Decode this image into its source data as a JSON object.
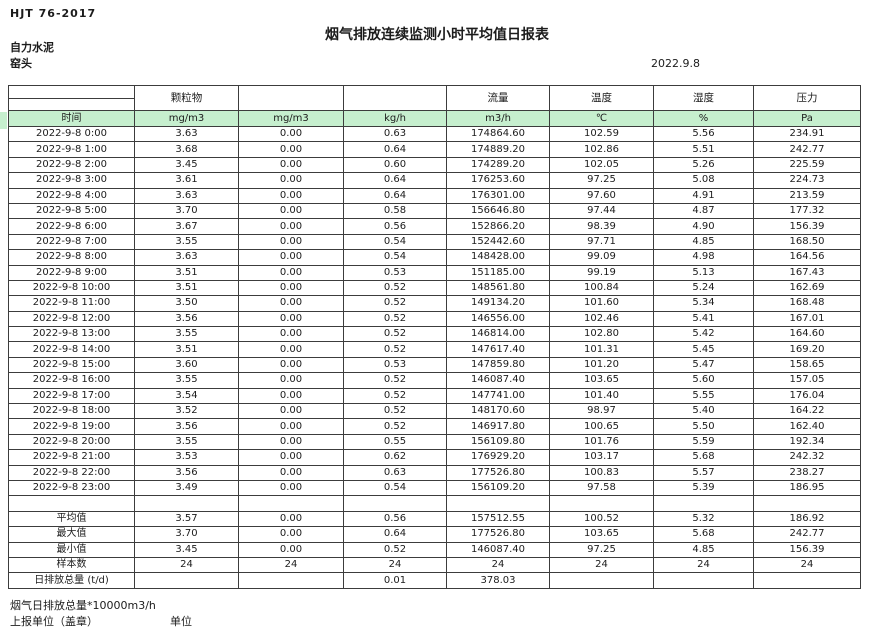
{
  "doc": {
    "standard": "HJT  76-2017",
    "title": "烟气排放连续监测小时平均值日报表",
    "company": "自力水泥",
    "location": "窑头",
    "date": "2022.9.8"
  },
  "colors": {
    "unit_row_bg": "#c6efce",
    "border": "#3c3c3c"
  },
  "table": {
    "group_headers": [
      "",
      "颗粒物",
      "",
      "",
      "流量",
      "温度",
      "湿度",
      "压力"
    ],
    "unit_row": [
      "时间",
      "mg/m3",
      "mg/m3",
      "kg/h",
      "m3/h",
      "℃",
      "%",
      "Pa"
    ],
    "rows": [
      [
        "2022-9-8 0:00",
        "3.63",
        "0.00",
        "0.63",
        "174864.60",
        "102.59",
        "5.56",
        "234.91"
      ],
      [
        "2022-9-8 1:00",
        "3.68",
        "0.00",
        "0.64",
        "174889.20",
        "102.86",
        "5.51",
        "242.77"
      ],
      [
        "2022-9-8 2:00",
        "3.45",
        "0.00",
        "0.60",
        "174289.20",
        "102.05",
        "5.26",
        "225.59"
      ],
      [
        "2022-9-8 3:00",
        "3.61",
        "0.00",
        "0.64",
        "176253.60",
        "97.25",
        "5.08",
        "224.73"
      ],
      [
        "2022-9-8 4:00",
        "3.63",
        "0.00",
        "0.64",
        "176301.00",
        "97.60",
        "4.91",
        "213.59"
      ],
      [
        "2022-9-8 5:00",
        "3.70",
        "0.00",
        "0.58",
        "156646.80",
        "97.44",
        "4.87",
        "177.32"
      ],
      [
        "2022-9-8 6:00",
        "3.67",
        "0.00",
        "0.56",
        "152866.20",
        "98.39",
        "4.90",
        "156.39"
      ],
      [
        "2022-9-8 7:00",
        "3.55",
        "0.00",
        "0.54",
        "152442.60",
        "97.71",
        "4.85",
        "168.50"
      ],
      [
        "2022-9-8 8:00",
        "3.63",
        "0.00",
        "0.54",
        "148428.00",
        "99.09",
        "4.98",
        "164.56"
      ],
      [
        "2022-9-8 9:00",
        "3.51",
        "0.00",
        "0.53",
        "151185.00",
        "99.19",
        "5.13",
        "167.43"
      ],
      [
        "2022-9-8 10:00",
        "3.51",
        "0.00",
        "0.52",
        "148561.80",
        "100.84",
        "5.24",
        "162.69"
      ],
      [
        "2022-9-8 11:00",
        "3.50",
        "0.00",
        "0.52",
        "149134.20",
        "101.60",
        "5.34",
        "168.48"
      ],
      [
        "2022-9-8 12:00",
        "3.56",
        "0.00",
        "0.52",
        "146556.00",
        "102.46",
        "5.41",
        "167.01"
      ],
      [
        "2022-9-8 13:00",
        "3.55",
        "0.00",
        "0.52",
        "146814.00",
        "102.80",
        "5.42",
        "164.60"
      ],
      [
        "2022-9-8 14:00",
        "3.51",
        "0.00",
        "0.52",
        "147617.40",
        "101.31",
        "5.45",
        "169.20"
      ],
      [
        "2022-9-8 15:00",
        "3.60",
        "0.00",
        "0.53",
        "147859.80",
        "101.20",
        "5.47",
        "158.65"
      ],
      [
        "2022-9-8 16:00",
        "3.55",
        "0.00",
        "0.52",
        "146087.40",
        "103.65",
        "5.60",
        "157.05"
      ],
      [
        "2022-9-8 17:00",
        "3.54",
        "0.00",
        "0.52",
        "147741.00",
        "101.40",
        "5.55",
        "176.04"
      ],
      [
        "2022-9-8 18:00",
        "3.52",
        "0.00",
        "0.52",
        "148170.60",
        "98.97",
        "5.40",
        "164.22"
      ],
      [
        "2022-9-8 19:00",
        "3.56",
        "0.00",
        "0.52",
        "146917.80",
        "100.65",
        "5.50",
        "162.40"
      ],
      [
        "2022-9-8 20:00",
        "3.55",
        "0.00",
        "0.55",
        "156109.80",
        "101.76",
        "5.59",
        "192.34"
      ],
      [
        "2022-9-8 21:00",
        "3.53",
        "0.00",
        "0.62",
        "176929.20",
        "103.17",
        "5.68",
        "242.32"
      ],
      [
        "2022-9-8 22:00",
        "3.56",
        "0.00",
        "0.63",
        "177526.80",
        "100.83",
        "5.57",
        "238.27"
      ],
      [
        "2022-9-8 23:00",
        "3.49",
        "0.00",
        "0.54",
        "156109.20",
        "97.58",
        "5.39",
        "186.95"
      ]
    ],
    "summary_rows": [
      [
        "平均值",
        "3.57",
        "0.00",
        "0.56",
        "157512.55",
        "100.52",
        "5.32",
        "186.92"
      ],
      [
        "最大值",
        "3.70",
        "0.00",
        "0.64",
        "177526.80",
        "103.65",
        "5.68",
        "242.77"
      ],
      [
        "最小值",
        "3.45",
        "0.00",
        "0.52",
        "146087.40",
        "97.25",
        "4.85",
        "156.39"
      ],
      [
        "样本数",
        "24",
        "24",
        "24",
        "24",
        "24",
        "24",
        "24"
      ],
      [
        "日排放总量 (t/d)",
        "",
        "",
        "0.01",
        "378.03",
        "",
        "",
        ""
      ]
    ]
  },
  "footer": {
    "note": "烟气日排放总量*10000m3/h",
    "report_unit": "上报单位（盖章）",
    "unit_label": "单位"
  }
}
